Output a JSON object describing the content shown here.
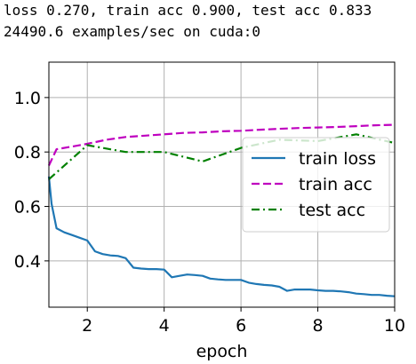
{
  "console": {
    "line1": "loss 0.270, train acc 0.900, test acc 0.833",
    "line2": "24490.6 examples/sec on cuda:0"
  },
  "chart_data": {
    "type": "line",
    "xlabel": "epoch",
    "ylabel": "",
    "xlim": [
      1,
      10
    ],
    "ylim": [
      0.23,
      1.13
    ],
    "xticks": [
      2,
      4,
      6,
      8,
      10
    ],
    "yticks": [
      0.4,
      0.6,
      0.8,
      1.0
    ],
    "grid": true,
    "legend_position": "center-right",
    "series": [
      {
        "name": "train loss",
        "color": "#1f77b4",
        "dash": "solid",
        "x": [
          1.0,
          1.07,
          1.2,
          1.4,
          1.6,
          1.8,
          2.0,
          2.2,
          2.4,
          2.6,
          2.8,
          3.0,
          3.2,
          3.4,
          3.6,
          3.8,
          4.0,
          4.2,
          4.4,
          4.6,
          4.8,
          5.0,
          5.2,
          5.4,
          5.6,
          5.8,
          6.0,
          6.2,
          6.4,
          6.6,
          6.8,
          7.0,
          7.2,
          7.4,
          7.6,
          7.8,
          8.0,
          8.2,
          8.4,
          8.6,
          8.8,
          9.0,
          9.2,
          9.4,
          9.6,
          9.8,
          10.0
        ],
        "y": [
          0.71,
          0.61,
          0.52,
          0.505,
          0.495,
          0.485,
          0.475,
          0.435,
          0.425,
          0.42,
          0.418,
          0.41,
          0.375,
          0.372,
          0.37,
          0.37,
          0.368,
          0.34,
          0.345,
          0.35,
          0.348,
          0.345,
          0.335,
          0.332,
          0.33,
          0.33,
          0.33,
          0.32,
          0.315,
          0.312,
          0.31,
          0.305,
          0.29,
          0.295,
          0.295,
          0.295,
          0.292,
          0.29,
          0.29,
          0.288,
          0.285,
          0.28,
          0.278,
          0.275,
          0.275,
          0.272,
          0.27
        ]
      },
      {
        "name": "train acc",
        "color": "#bf00bf",
        "dash": "dashed",
        "x": [
          1.0,
          1.2,
          1.6,
          2.0,
          2.5,
          3.0,
          3.5,
          4.0,
          4.5,
          5.0,
          5.5,
          6.0,
          6.5,
          7.0,
          7.5,
          8.0,
          8.5,
          9.0,
          9.5,
          10.0
        ],
        "y": [
          0.75,
          0.81,
          0.82,
          0.83,
          0.845,
          0.855,
          0.86,
          0.865,
          0.87,
          0.872,
          0.876,
          0.878,
          0.882,
          0.885,
          0.888,
          0.89,
          0.892,
          0.895,
          0.898,
          0.9
        ]
      },
      {
        "name": "test acc",
        "color": "#008000",
        "dash": "dashdot",
        "x": [
          1,
          2,
          3,
          4,
          5,
          6,
          7,
          8,
          9,
          10
        ],
        "y": [
          0.7,
          0.825,
          0.8,
          0.8,
          0.765,
          0.815,
          0.845,
          0.84,
          0.865,
          0.833
        ]
      }
    ]
  }
}
